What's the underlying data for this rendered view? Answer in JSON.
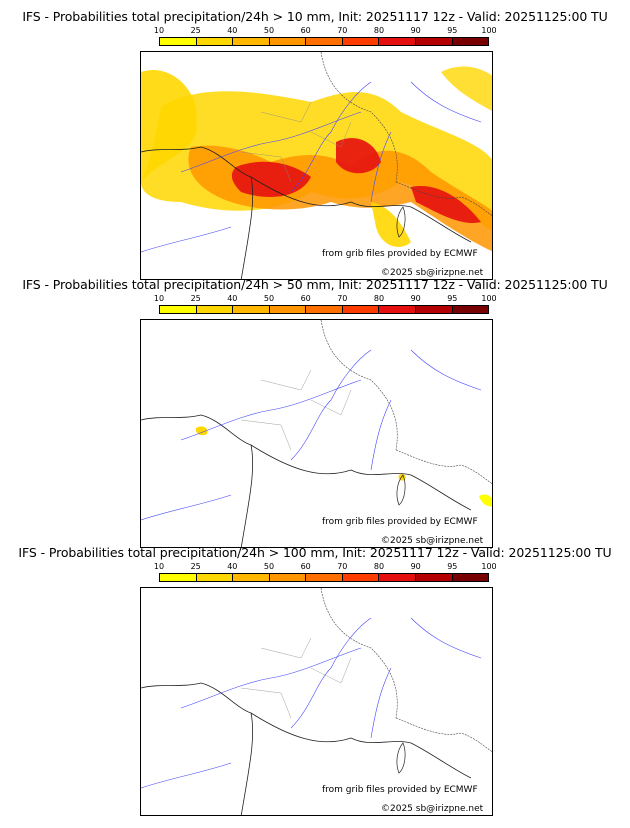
{
  "panels": [
    {
      "title": "IFS - Probabilities total precipitation/24h > 10 mm, Init: 20251117 12z - Valid: 20251125:00 TU",
      "threshold_mm": 10
    },
    {
      "title": "IFS - Probabilities total precipitation/24h > 50 mm, Init: 20251117 12z - Valid: 20251125:00 TU",
      "threshold_mm": 50
    },
    {
      "title": "IFS - Probabilities total precipitation/24h > 100 mm, Init: 20251117 12z - Valid: 20251125:00 TU",
      "threshold_mm": 100
    }
  ],
  "scale": {
    "ticks": [
      "10",
      "25",
      "40",
      "50",
      "60",
      "70",
      "80",
      "90",
      "95",
      "100"
    ],
    "colors": [
      "#ffff00",
      "#ffd700",
      "#ffb700",
      "#ff9500",
      "#ff6f00",
      "#ff3c00",
      "#e60f0f",
      "#b40000",
      "#780000"
    ]
  },
  "credit": {
    "source": "from grib files provided by ECMWF",
    "copyright": "©2025 sb@irizpne.net"
  }
}
